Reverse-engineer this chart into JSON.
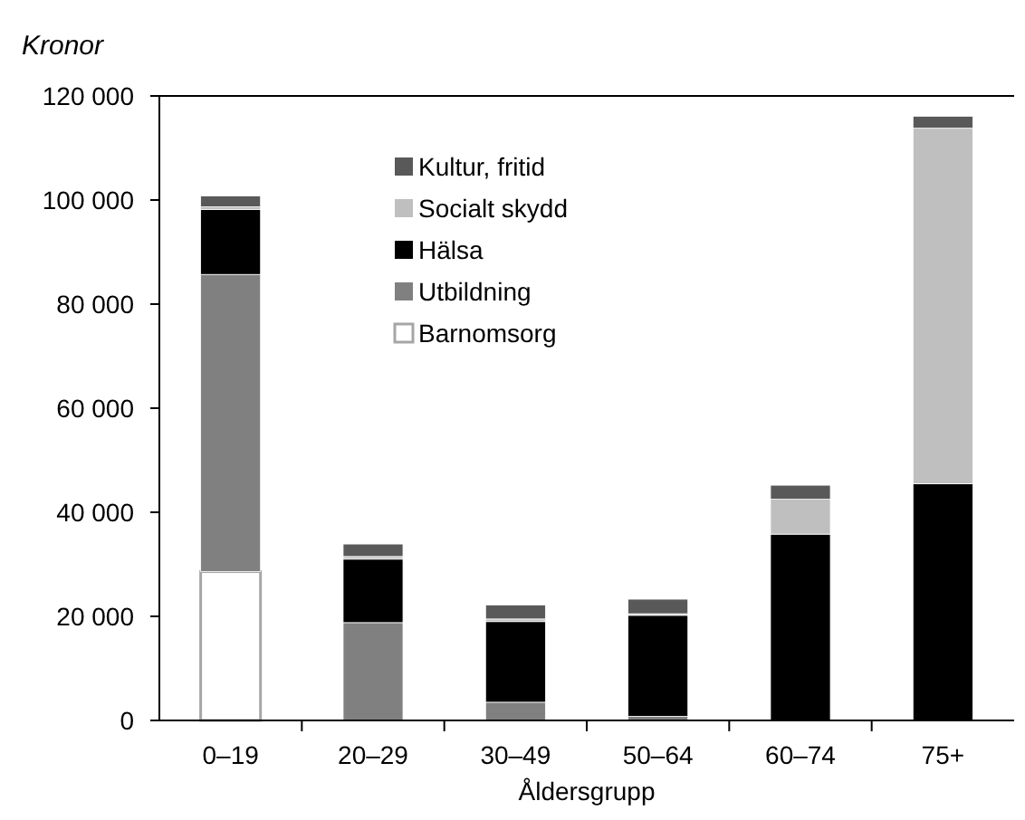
{
  "chart_data": {
    "type": "bar",
    "stacked": true,
    "ylabel": "Kronor",
    "xlabel": "Åldersgrupp",
    "categories": [
      "0–19",
      "20–29",
      "30–49",
      "50–64",
      "60–74",
      "75+"
    ],
    "series": [
      {
        "name": "Barnomsorg",
        "color": "#ffffff",
        "values": [
          28600,
          null,
          null,
          null,
          null,
          null
        ]
      },
      {
        "name": "Utbildning",
        "color": "#808080",
        "values": [
          57100,
          18800,
          3500,
          800,
          null,
          null
        ]
      },
      {
        "name": "Hälsa",
        "color": "#000000",
        "values": [
          12500,
          12200,
          15500,
          19400,
          35800,
          45500
        ]
      },
      {
        "name": "Socialt skydd",
        "color": "#bfbfbf",
        "values": [
          500,
          500,
          500,
          300,
          6700,
          68300
        ]
      },
      {
        "name": "Kultur, fritid",
        "color": "#595959",
        "values": [
          2100,
          2400,
          2700,
          2800,
          2700,
          2300
        ]
      }
    ],
    "ylim": [
      0,
      120000
    ],
    "yticks": [
      {
        "value": 0,
        "label": "0"
      },
      {
        "value": 20000,
        "label": "20 000"
      },
      {
        "value": 40000,
        "label": "40 000"
      },
      {
        "value": 60000,
        "label": "60 000"
      },
      {
        "value": 80000,
        "label": "80 000"
      },
      {
        "value": 100000,
        "label": "100 000"
      },
      {
        "value": 120000,
        "label": "120 000"
      }
    ],
    "legend": "top",
    "grid": false
  }
}
